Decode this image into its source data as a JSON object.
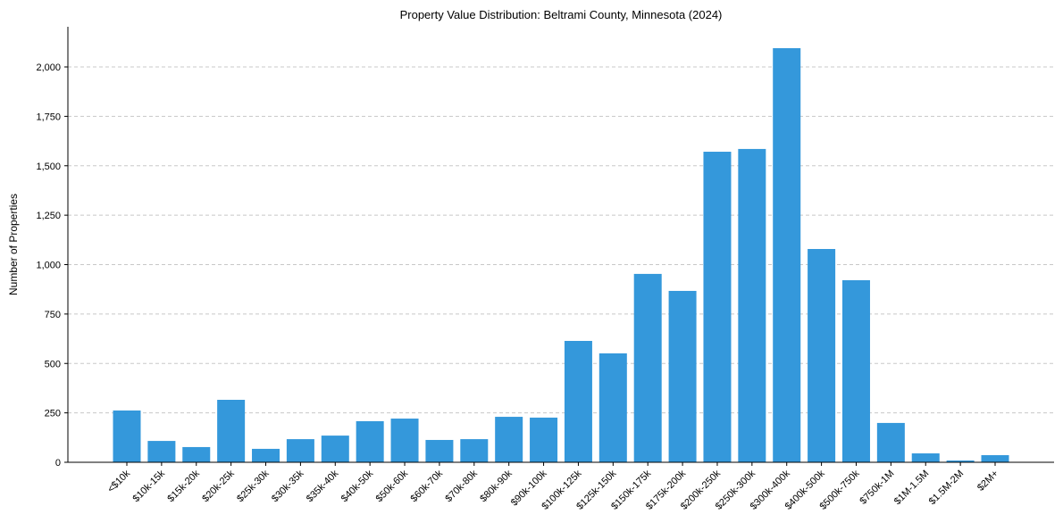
{
  "chart_data": {
    "type": "bar",
    "title": "Property Value Distribution: Beltrami County, Minnesota (2024)",
    "xlabel": "",
    "ylabel": "Number of Properties",
    "ylim": [
      0,
      2200
    ],
    "yticks": [
      0,
      250,
      500,
      750,
      1000,
      1250,
      1500,
      1750,
      2000
    ],
    "ytick_labels": [
      "0",
      "250",
      "500",
      "750",
      "1,000",
      "1,250",
      "1,500",
      "1,750",
      "2,000"
    ],
    "grid": "y-dashed",
    "bar_color": "#3498db",
    "categories": [
      "<$10k",
      "$10k-15k",
      "$15k-20k",
      "$20k-25k",
      "$25k-30k",
      "$30k-35k",
      "$35k-40k",
      "$40k-50k",
      "$50k-60k",
      "$60k-70k",
      "$70k-80k",
      "$80k-90k",
      "$90k-100k",
      "$100k-125k",
      "$125k-150k",
      "$150k-175k",
      "$175k-200k",
      "$200k-250k",
      "$250k-300k",
      "$300k-400k",
      "$400k-500k",
      "$500k-750k",
      "$750k-1M",
      "$1M-1.5M",
      "$1.5M-2M",
      "$2M+"
    ],
    "values": [
      262,
      108,
      77,
      316,
      68,
      117,
      135,
      208,
      221,
      113,
      117,
      230,
      226,
      614,
      551,
      953,
      867,
      1571,
      1585,
      2095,
      1079,
      921,
      199,
      45,
      9,
      36
    ]
  }
}
